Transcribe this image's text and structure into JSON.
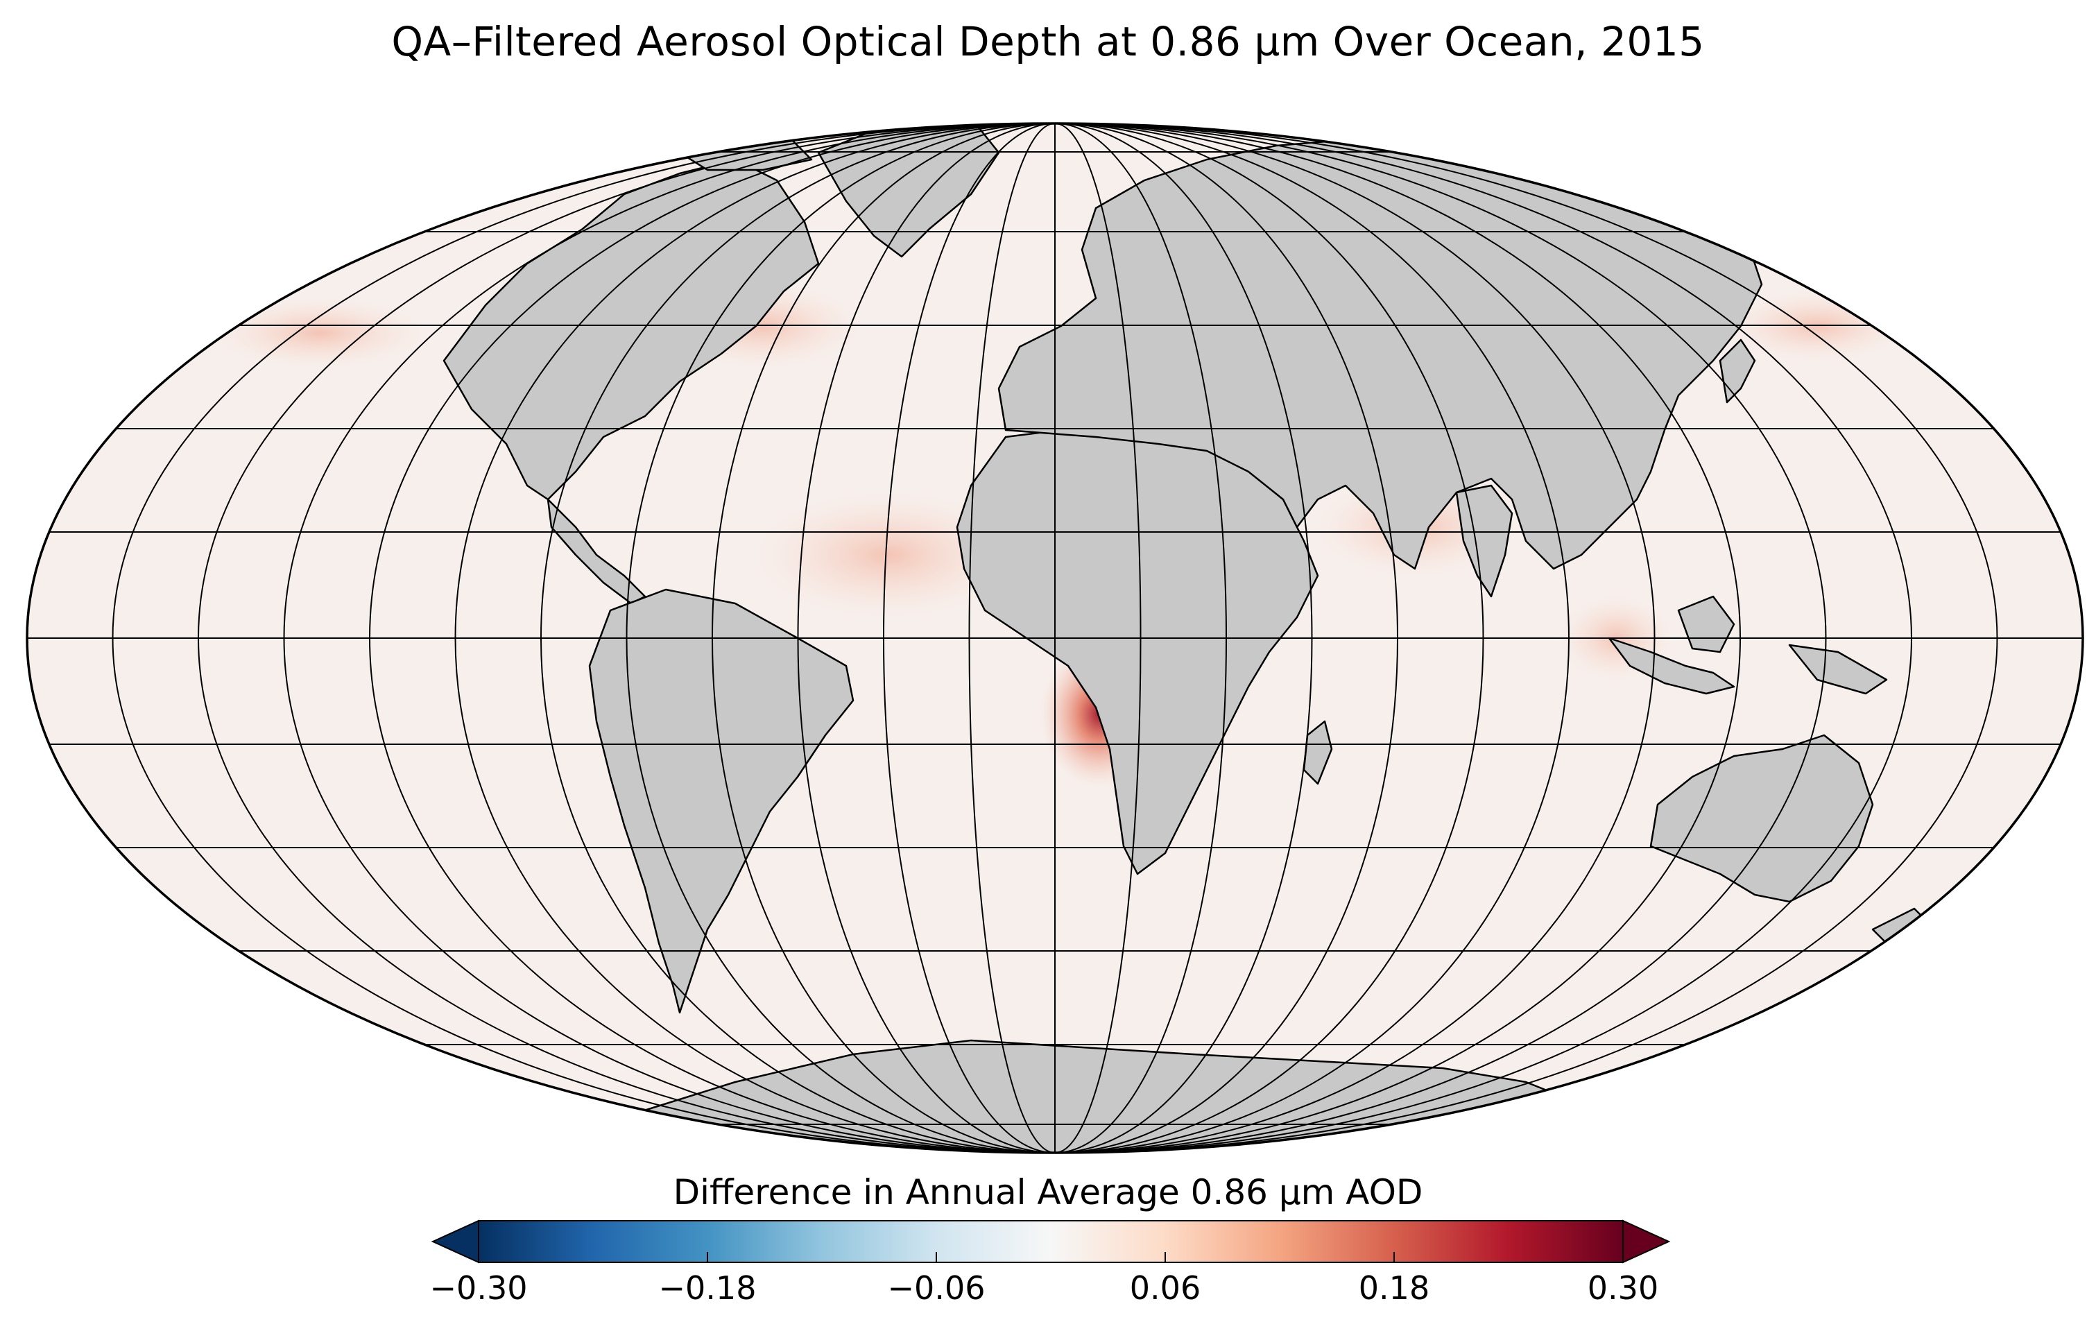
{
  "title": "QA–Filtered Aerosol Optical Depth at 0.86 µm Over Ocean, 2015",
  "map": {
    "projection": "mollweide",
    "graticule_lat_step_deg": 15,
    "graticule_lon_step_deg": 15,
    "land_color": "#c8c8c8",
    "ocean_base_color": "#f7efec",
    "coastline_color": "#000000",
    "graticule_color": "#000000"
  },
  "colorbar": {
    "label": "Difference in Annual Average 0.86 µm AOD",
    "colormap": "RdBu_r",
    "min": -0.3,
    "max": 0.3,
    "extend": "both",
    "tick_labels": [
      "−0.30",
      "−0.18",
      "−0.06",
      "0.06",
      "0.18",
      "0.30"
    ],
    "tick_values": [
      -0.3,
      -0.18,
      -0.06,
      0.06,
      0.18,
      0.3
    ],
    "colors": [
      "#053061",
      "#2166ac",
      "#4393c3",
      "#92c5de",
      "#d1e5f0",
      "#f7f7f7",
      "#fddbc7",
      "#f4a582",
      "#d6604d",
      "#b2182b",
      "#67001f"
    ]
  }
}
